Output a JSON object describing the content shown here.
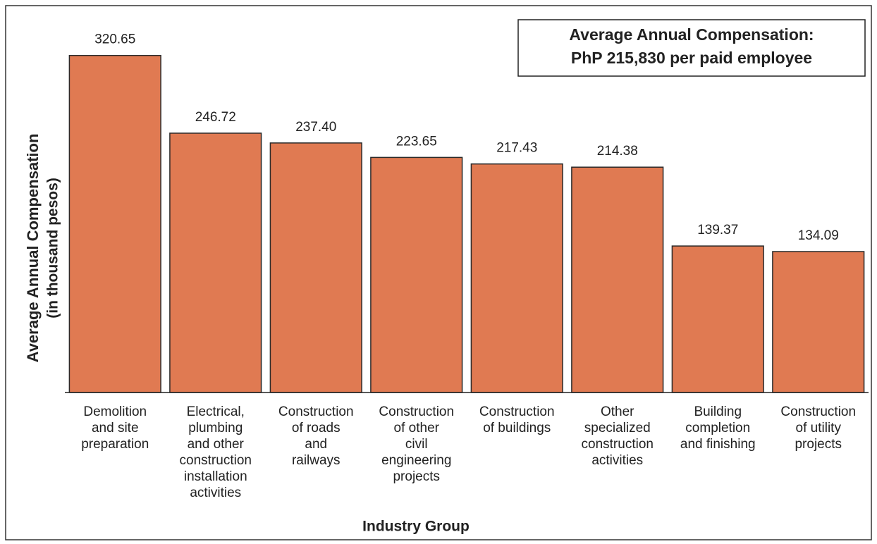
{
  "chart_data": {
    "type": "bar",
    "annotation": [
      "Average Annual Compensation:",
      "PhP 215,830 per paid employee"
    ],
    "y_label": [
      "Average Annual Compensation",
      "(in thousand pesos)"
    ],
    "x_label": "Industry Group",
    "categories": [
      [
        "Demolition",
        "and site",
        "preparation"
      ],
      [
        "Electrical,",
        "plumbing",
        "and other",
        "construction",
        "installation",
        "activities"
      ],
      [
        "Construction",
        "of roads",
        "and",
        "railways"
      ],
      [
        "Construction",
        "of other",
        "civil",
        "engineering",
        "projects"
      ],
      [
        "Construction",
        "of buildings"
      ],
      [
        "Other",
        "specialized",
        "construction",
        "activities"
      ],
      [
        "Building",
        "completion",
        "and finishing"
      ],
      [
        "Construction",
        "of utility",
        "projects"
      ]
    ],
    "values": [
      320.65,
      246.72,
      237.4,
      223.65,
      217.43,
      214.38,
      139.37,
      134.09
    ],
    "value_labels": [
      "320.65",
      "246.72",
      "237.40",
      "223.65",
      "217.43",
      "214.38",
      "139.37",
      "134.09"
    ],
    "color": "#e07a52",
    "ylim": [
      0,
      360
    ]
  }
}
